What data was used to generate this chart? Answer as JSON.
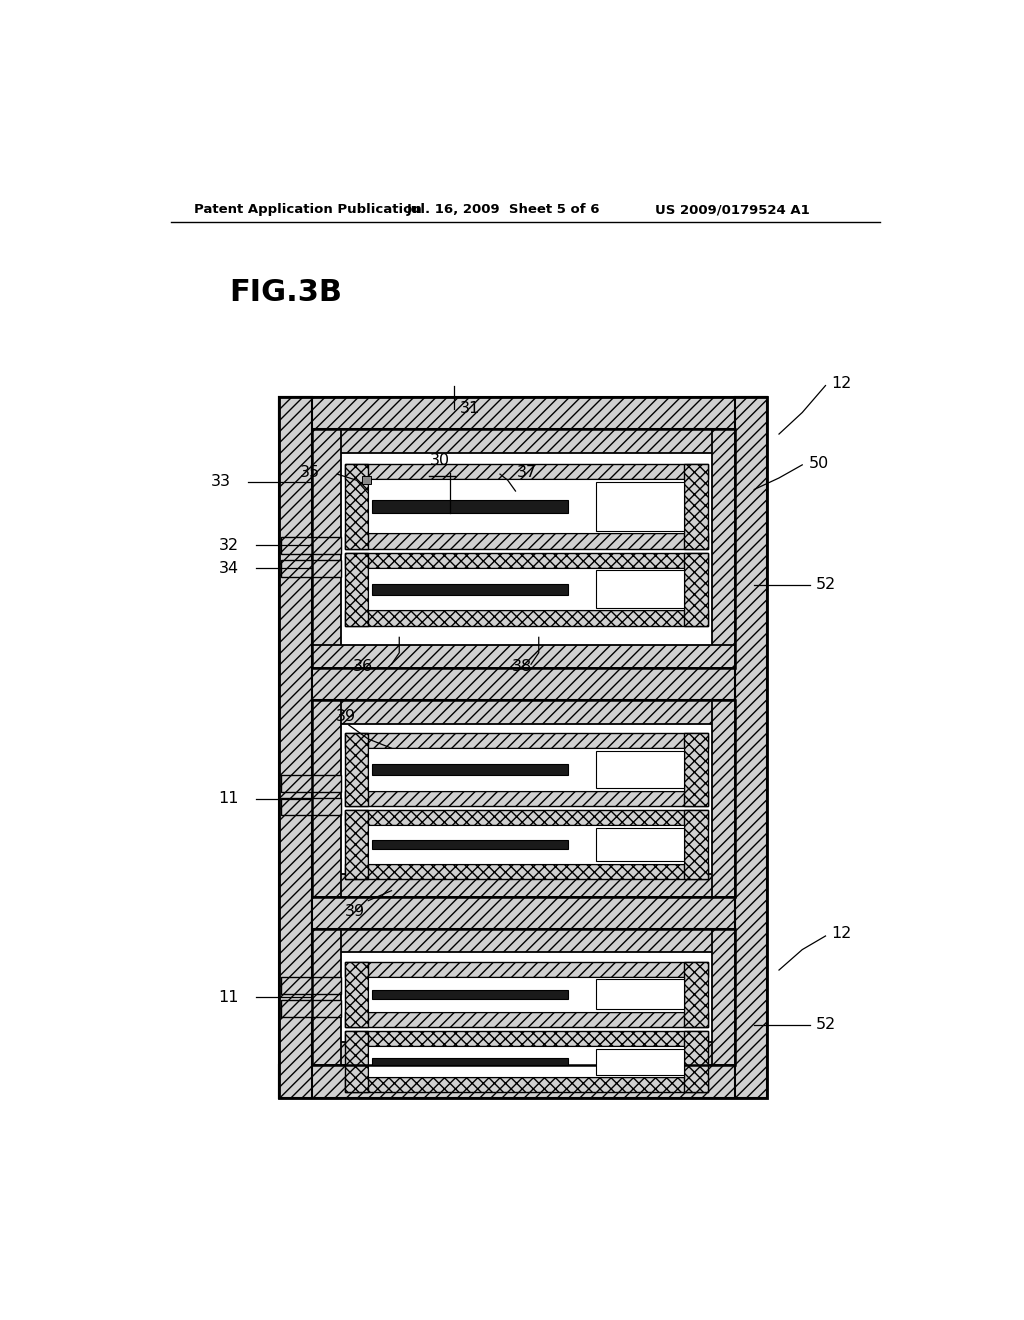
{
  "header_left": "Patent Application Publication",
  "header_mid": "Jul. 16, 2009  Sheet 5 of 6",
  "header_right": "US 2009/0179524 A1",
  "title": "FIG.3B",
  "bg_color": "#ffffff"
}
